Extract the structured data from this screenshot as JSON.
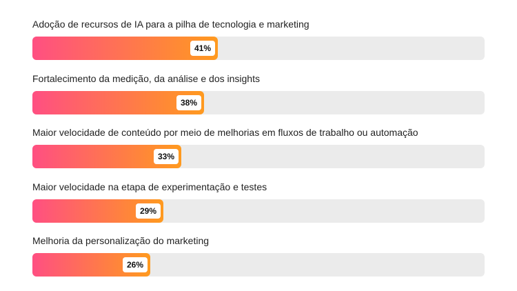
{
  "colors": {
    "track": "#ebebeb",
    "fill_start": "#ff4f82",
    "fill_end": "#ff9a1f",
    "text": "#222222"
  },
  "chart_data": {
    "type": "bar",
    "orientation": "horizontal",
    "categories": [
      "Adoção de recursos de IA para a pilha de tecnologia e marketing",
      "Fortalecimento da medição, da análise e dos insights",
      "Maior velocidade de conteúdo por meio de melhorias em fluxos de trabalho ou automação",
      "Maior velocidade na etapa de experimentação e testes",
      "Melhoria da personalização do marketing"
    ],
    "values": [
      41,
      38,
      33,
      29,
      26
    ],
    "value_labels": [
      "41%",
      "38%",
      "33%",
      "29%",
      "26%"
    ],
    "xlim": [
      0,
      100
    ],
    "grid": false
  }
}
